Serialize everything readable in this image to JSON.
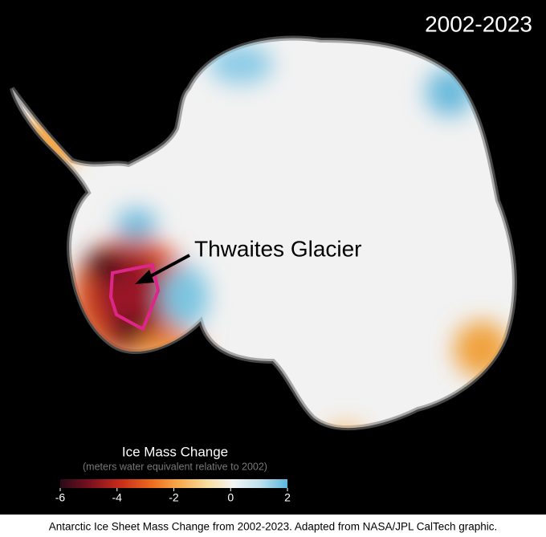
{
  "header": {
    "period": "2002-2023"
  },
  "annotation": {
    "label": "Thwaites Glacier"
  },
  "legend": {
    "title": "Ice Mass Change",
    "subtitle": "(meters water equivalent relative to 2002)",
    "range": [
      -6,
      2
    ],
    "ticks": [
      -6,
      -4,
      -2,
      0,
      2
    ]
  },
  "caption": "Antarctic Ice Sheet Mass Change from 2002-2023. Adapted from NASA/JPL CalTech graphic."
}
